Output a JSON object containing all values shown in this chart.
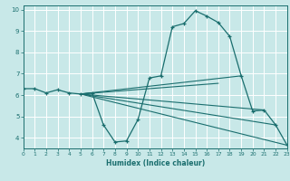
{
  "xlabel": "Humidex (Indice chaleur)",
  "xlim": [
    0,
    23
  ],
  "ylim": [
    3.5,
    10.2
  ],
  "yticks": [
    4,
    5,
    6,
    7,
    8,
    9,
    10
  ],
  "xticks": [
    0,
    1,
    2,
    3,
    4,
    5,
    6,
    7,
    8,
    9,
    10,
    11,
    12,
    13,
    14,
    15,
    16,
    17,
    18,
    19,
    20,
    21,
    22,
    23
  ],
  "bg_color": "#c8e8e8",
  "grid_color": "#ffffff",
  "line_color": "#1a6e6e",
  "main_x": [
    0,
    1,
    2,
    3,
    4,
    5,
    6,
    7,
    8,
    9,
    10,
    11,
    12,
    13,
    14,
    15,
    16,
    17,
    18,
    19,
    20,
    21,
    22,
    23
  ],
  "main_y": [
    6.3,
    6.3,
    6.1,
    6.25,
    6.1,
    6.05,
    6.1,
    4.6,
    3.8,
    3.85,
    4.85,
    6.8,
    6.9,
    9.2,
    9.35,
    9.95,
    9.7,
    9.4,
    8.75,
    6.9,
    5.25,
    5.3,
    4.6,
    3.65
  ],
  "fan_lines": [
    {
      "x": [
        5,
        23
      ],
      "y": [
        6.05,
        3.65
      ]
    },
    {
      "x": [
        5,
        22
      ],
      "y": [
        6.05,
        4.6
      ]
    },
    {
      "x": [
        5,
        21
      ],
      "y": [
        6.05,
        5.3
      ]
    },
    {
      "x": [
        5,
        19
      ],
      "y": [
        6.05,
        6.9
      ]
    },
    {
      "x": [
        5,
        17
      ],
      "y": [
        6.05,
        6.55
      ]
    }
  ]
}
